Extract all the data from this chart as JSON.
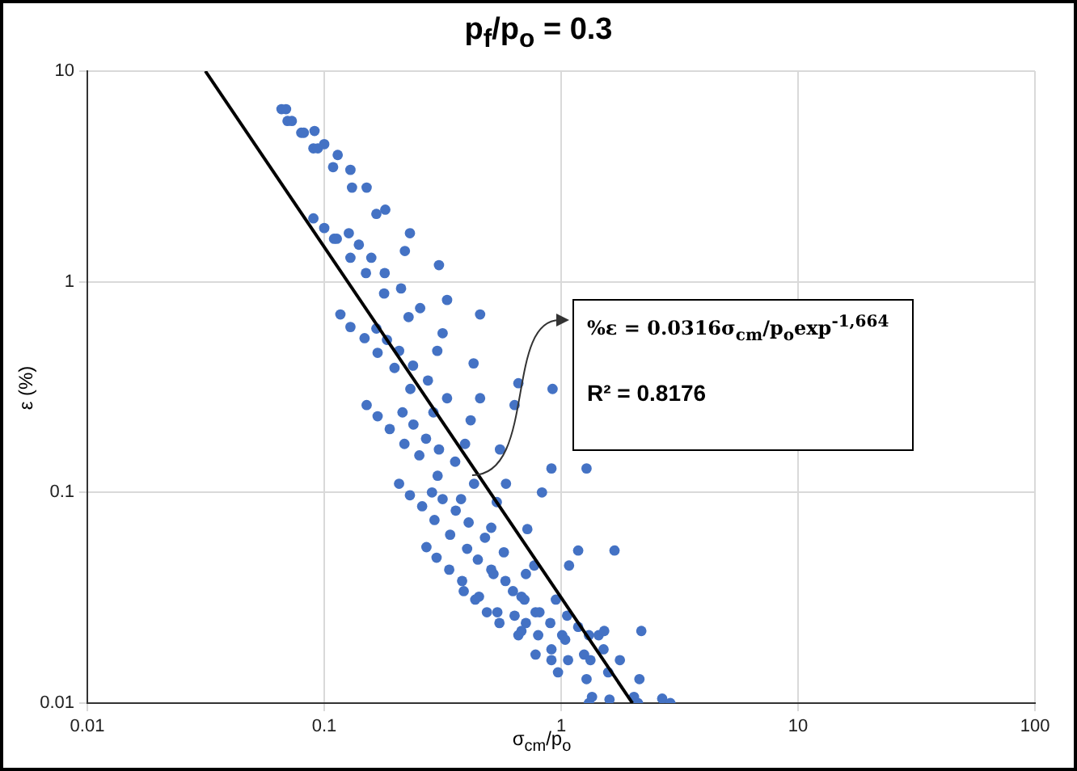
{
  "chart_data": {
    "type": "scatter",
    "title": "p$_{f}$/p$_{o}$ = 0.3",
    "xlabel": "σ$_{cm}$/p$_{o}$",
    "ylabel": "ε (%)",
    "log": "xy",
    "grid": true,
    "legend": false,
    "xlim": [
      0.01,
      100
    ],
    "xticks": [
      0.01,
      0.1,
      1,
      10,
      100
    ],
    "ylim": [
      0.01,
      10
    ],
    "yticks": [
      0.01,
      0.1,
      1,
      10
    ],
    "annotations": [
      "%ε = 0.0316σ$_{cm}$/p$_{o}$exp$^{-1,664}$",
      "R² = 0.8176"
    ],
    "series": [
      {
        "color": "#4472c4",
        "marker": "circle",
        "x": [
          0.066,
          0.069,
          0.07,
          0.073,
          0.08,
          0.082,
          0.091,
          0.09,
          0.094,
          0.1,
          0.114,
          0.109,
          0.129,
          0.131,
          0.151,
          0.166,
          0.181,
          0.09,
          0.1,
          0.11,
          0.113,
          0.127,
          0.23,
          0.14,
          0.129,
          0.158,
          0.219,
          0.15,
          0.18,
          0.305,
          0.179,
          0.211,
          0.33,
          0.254,
          0.117,
          0.129,
          0.166,
          0.227,
          0.455,
          0.316,
          0.148,
          0.184,
          0.168,
          0.207,
          0.3,
          0.427,
          0.198,
          0.237,
          0.274,
          0.231,
          0.66,
          0.33,
          0.455,
          0.636,
          0.92,
          0.289,
          0.151,
          0.168,
          0.189,
          0.214,
          0.238,
          0.415,
          0.218,
          0.269,
          0.393,
          0.305,
          0.252,
          0.552,
          0.357,
          0.301,
          0.429,
          0.585,
          0.91,
          1.28,
          0.83,
          0.207,
          0.23,
          0.285,
          0.316,
          0.378,
          0.259,
          0.359,
          0.535,
          0.292,
          0.407,
          0.507,
          0.72,
          0.34,
          0.477,
          0.27,
          0.401,
          0.573,
          0.298,
          0.445,
          1.18,
          1.68,
          0.337,
          0.77,
          1.08,
          0.507,
          0.518,
          0.71,
          0.382,
          0.582,
          0.388,
          0.45,
          0.434,
          0.626,
          0.68,
          0.7,
          0.95,
          0.486,
          0.538,
          0.636,
          0.78,
          0.81,
          1.06,
          0.549,
          0.71,
          0.9,
          1.18,
          0.66,
          0.68,
          0.8,
          1.01,
          1.04,
          1.31,
          1.44,
          1.52,
          2.18,
          0.78,
          0.91,
          0.91,
          1.07,
          1.25,
          1.51,
          1.33,
          1.77,
          0.97,
          1.28,
          1.58,
          2.14,
          1.35,
          1.31,
          1.6,
          2.03,
          2.11,
          2.67,
          2.89
        ],
        "values": [
          6.6,
          6.6,
          5.8,
          5.8,
          5.1,
          5.1,
          5.2,
          4.3,
          4.3,
          4.5,
          4.0,
          3.5,
          3.4,
          2.8,
          2.8,
          2.1,
          2.2,
          2.0,
          1.8,
          1.6,
          1.6,
          1.7,
          1.7,
          1.5,
          1.3,
          1.3,
          1.4,
          1.1,
          1.1,
          1.2,
          0.88,
          0.93,
          0.82,
          0.75,
          0.7,
          0.61,
          0.6,
          0.68,
          0.7,
          0.57,
          0.54,
          0.53,
          0.46,
          0.47,
          0.47,
          0.41,
          0.39,
          0.4,
          0.34,
          0.31,
          0.33,
          0.28,
          0.28,
          0.26,
          0.31,
          0.24,
          0.26,
          0.23,
          0.2,
          0.24,
          0.21,
          0.22,
          0.17,
          0.18,
          0.17,
          0.16,
          0.15,
          0.16,
          0.14,
          0.12,
          0.11,
          0.11,
          0.13,
          0.13,
          0.1,
          0.11,
          0.097,
          0.1,
          0.093,
          0.093,
          0.086,
          0.082,
          0.09,
          0.074,
          0.072,
          0.068,
          0.067,
          0.063,
          0.061,
          0.055,
          0.054,
          0.052,
          0.049,
          0.048,
          0.053,
          0.053,
          0.043,
          0.045,
          0.045,
          0.043,
          0.041,
          0.041,
          0.038,
          0.038,
          0.034,
          0.032,
          0.031,
          0.034,
          0.032,
          0.031,
          0.031,
          0.027,
          0.027,
          0.026,
          0.027,
          0.027,
          0.026,
          0.024,
          0.024,
          0.024,
          0.023,
          0.021,
          0.022,
          0.021,
          0.021,
          0.02,
          0.021,
          0.021,
          0.022,
          0.022,
          0.017,
          0.018,
          0.016,
          0.016,
          0.017,
          0.018,
          0.016,
          0.016,
          0.014,
          0.013,
          0.014,
          0.013,
          0.0107,
          0.01,
          0.0104,
          0.0107,
          0.01,
          0.0105,
          0.01
        ]
      },
      {
        "type": "line",
        "color": "#000000",
        "x": [
          0.0315,
          2.0
        ],
        "values": [
          10,
          0.01
        ]
      }
    ]
  }
}
